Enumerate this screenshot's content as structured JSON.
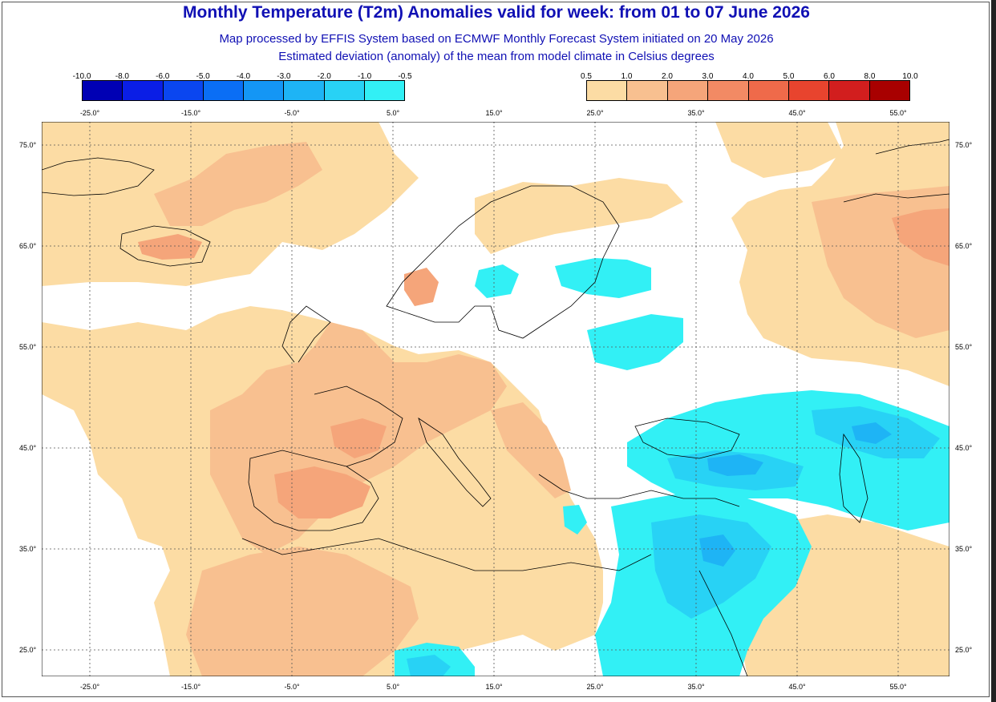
{
  "title": "Monthly Temperature (T2m) Anomalies valid for week: from 01 to 07 June 2026",
  "subtitle1": "Map processed by EFFIS System based on ECMWF Monthly Forecast System initiated on 20 May 2026",
  "subtitle2": "Estimated deviation (anomaly) of the mean from model climate in Celsius degrees",
  "legend_cold": {
    "labels": [
      "-10.0",
      "-8.0",
      "-6.0",
      "-5.0",
      "-4.0",
      "-3.0",
      "-2.0",
      "-1.0",
      "-0.5"
    ],
    "colors": [
      "#0000b4",
      "#0a1ee6",
      "#0a46f0",
      "#0a6ef5",
      "#1496f5",
      "#1eb4f5",
      "#28d2f5",
      "#32f0f5"
    ]
  },
  "legend_warm": {
    "labels": [
      "0.5",
      "1.0",
      "2.0",
      "3.0",
      "4.0",
      "5.0",
      "6.0",
      "8.0",
      "10.0"
    ],
    "colors": [
      "#fcdca4",
      "#f8c090",
      "#f5a57a",
      "#f28a64",
      "#ef6a4a",
      "#e8442e",
      "#d21e1e",
      "#a80000"
    ]
  },
  "lon_ticks": [
    "-25.0°",
    "-15.0°",
    "-5.0°",
    "5.0°",
    "15.0°",
    "25.0°",
    "35.0°",
    "45.0°",
    "55.0°"
  ],
  "lat_ticks": [
    "75.0°",
    "65.0°",
    "55.0°",
    "45.0°",
    "35.0°",
    "25.0°"
  ]
}
